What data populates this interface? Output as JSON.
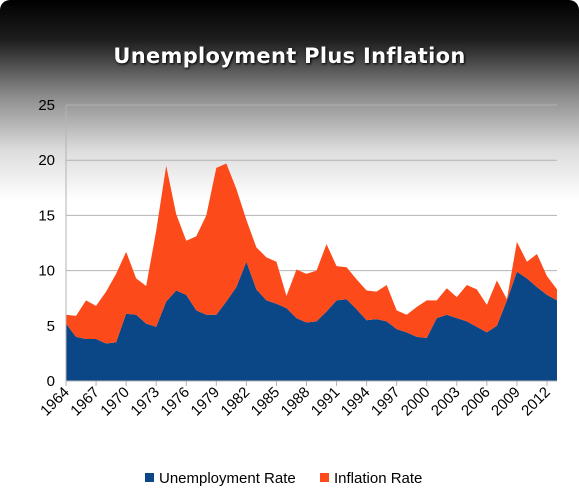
{
  "chart_data": {
    "type": "area",
    "stacked": true,
    "title": "Unemployment Plus Inflation",
    "x": [
      1964,
      1965,
      1966,
      1967,
      1968,
      1969,
      1970,
      1971,
      1972,
      1973,
      1974,
      1975,
      1976,
      1977,
      1978,
      1979,
      1980,
      1981,
      1982,
      1983,
      1984,
      1985,
      1986,
      1987,
      1988,
      1989,
      1990,
      1991,
      1992,
      1993,
      1994,
      1995,
      1996,
      1997,
      1998,
      1999,
      2000,
      2001,
      2002,
      2003,
      2004,
      2005,
      2006,
      2007,
      2008,
      2009,
      2010,
      2011,
      2012,
      2013
    ],
    "x_tick_labels": [
      "1964",
      "1967",
      "1970",
      "1973",
      "1976",
      "1979",
      "1982",
      "1985",
      "1988",
      "1991",
      "1994",
      "1997",
      "2000",
      "2003",
      "2006",
      "2009",
      "2012"
    ],
    "series": [
      {
        "name": "Unemployment Rate",
        "color": "#0b4687",
        "values": [
          5.2,
          4.0,
          3.8,
          3.8,
          3.4,
          3.5,
          6.1,
          6.0,
          5.2,
          4.9,
          7.2,
          8.2,
          7.8,
          6.4,
          6.0,
          6.0,
          7.2,
          8.5,
          10.8,
          8.3,
          7.3,
          7.0,
          6.6,
          5.7,
          5.3,
          5.4,
          6.3,
          7.3,
          7.4,
          6.5,
          5.5,
          5.6,
          5.4,
          4.7,
          4.4,
          4.0,
          3.9,
          5.7,
          6.0,
          5.7,
          5.4,
          4.9,
          4.4,
          5.0,
          7.3,
          9.9,
          9.3,
          8.5,
          7.8,
          7.3
        ]
      },
      {
        "name": "Inflation Rate",
        "color": "#fc4a1a",
        "values": [
          0.8,
          1.9,
          3.5,
          3.0,
          4.7,
          6.2,
          5.6,
          3.3,
          3.4,
          8.7,
          12.3,
          6.9,
          4.9,
          6.7,
          9.0,
          13.3,
          12.5,
          8.9,
          3.8,
          3.8,
          3.9,
          3.8,
          1.1,
          4.4,
          4.4,
          4.6,
          6.1,
          3.1,
          2.9,
          2.7,
          2.7,
          2.5,
          3.3,
          1.7,
          1.6,
          2.7,
          3.4,
          1.6,
          2.4,
          1.9,
          3.3,
          3.4,
          2.5,
          4.1,
          0.1,
          2.7,
          1.5,
          3.0,
          1.7,
          1.0
        ]
      }
    ],
    "ylim": [
      0,
      25
    ],
    "yticks": [
      0,
      5,
      10,
      15,
      20,
      25
    ],
    "grid": true,
    "legend": "bottom"
  }
}
